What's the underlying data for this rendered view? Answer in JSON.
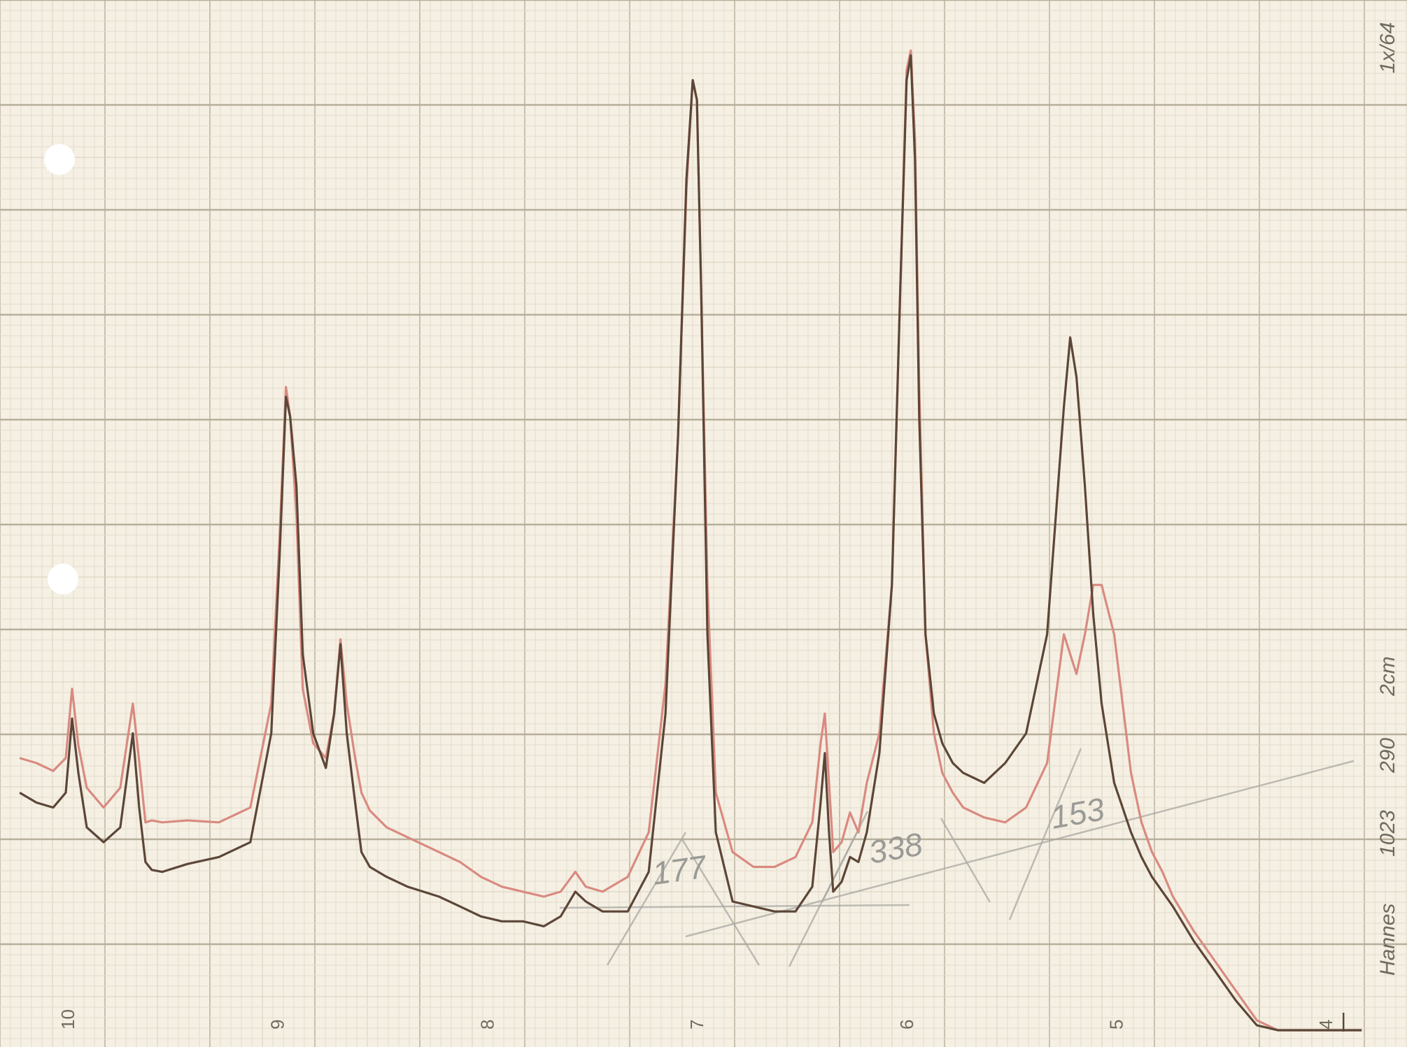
{
  "chart_data": {
    "type": "line",
    "title": "",
    "xlabel": "",
    "ylabel": "",
    "x_reversed": true,
    "xlim": [
      3.9,
      10.3
    ],
    "ylim": [
      0,
      1
    ],
    "x_ticks": [
      {
        "value": 10,
        "label": "10"
      },
      {
        "value": 9,
        "label": "9"
      },
      {
        "value": 8,
        "label": "8"
      },
      {
        "value": 7,
        "label": "7"
      },
      {
        "value": 6,
        "label": "6"
      },
      {
        "value": 5,
        "label": "5"
      },
      {
        "value": 4,
        "label": "4"
      }
    ],
    "grid": true,
    "legend": "none",
    "series": [
      {
        "color": "#d98a80",
        "x": [
          10.3,
          10.22,
          10.14,
          10.08,
          10.05,
          10.02,
          9.98,
          9.9,
          9.82,
          9.76,
          9.73,
          9.7,
          9.67,
          9.62,
          9.5,
          9.35,
          9.2,
          9.1,
          9.06,
          9.03,
          9.01,
          8.98,
          8.95,
          8.9,
          8.84,
          8.8,
          8.77,
          8.74,
          8.7,
          8.67,
          8.63,
          8.55,
          8.45,
          8.3,
          8.2,
          8.1,
          8.0,
          7.9,
          7.8,
          7.72,
          7.65,
          7.6,
          7.52,
          7.4,
          7.3,
          7.22,
          7.16,
          7.12,
          7.09,
          7.07,
          7.05,
          7.02,
          6.98,
          6.9,
          6.8,
          6.7,
          6.6,
          6.52,
          6.48,
          6.46,
          6.44,
          6.42,
          6.38,
          6.34,
          6.3,
          6.26,
          6.2,
          6.14,
          6.1,
          6.07,
          6.05,
          6.03,
          6.01,
          5.98,
          5.94,
          5.9,
          5.85,
          5.8,
          5.7,
          5.6,
          5.5,
          5.4,
          5.32,
          5.29,
          5.26,
          5.22,
          5.18,
          5.14,
          5.08,
          5.04,
          5.0,
          4.95,
          4.9,
          4.85,
          4.8,
          4.7,
          4.6,
          4.5,
          4.4,
          4.3,
          4.25,
          4.2,
          4.15,
          4.08,
          3.98,
          3.9
        ],
        "y": [
          0.275,
          0.27,
          0.262,
          0.275,
          0.345,
          0.288,
          0.245,
          0.225,
          0.245,
          0.33,
          0.272,
          0.21,
          0.212,
          0.21,
          0.212,
          0.21,
          0.225,
          0.33,
          0.5,
          0.65,
          0.62,
          0.52,
          0.345,
          0.29,
          0.275,
          0.32,
          0.395,
          0.33,
          0.275,
          0.24,
          0.222,
          0.205,
          0.195,
          0.18,
          0.17,
          0.155,
          0.145,
          0.14,
          0.135,
          0.14,
          0.16,
          0.145,
          0.14,
          0.155,
          0.2,
          0.35,
          0.6,
          0.85,
          0.96,
          0.94,
          0.75,
          0.45,
          0.24,
          0.18,
          0.165,
          0.165,
          0.175,
          0.21,
          0.29,
          0.32,
          0.25,
          0.18,
          0.19,
          0.22,
          0.2,
          0.25,
          0.3,
          0.45,
          0.75,
          0.97,
          0.99,
          0.9,
          0.65,
          0.4,
          0.3,
          0.26,
          0.24,
          0.225,
          0.215,
          0.21,
          0.225,
          0.27,
          0.4,
          0.38,
          0.36,
          0.4,
          0.45,
          0.45,
          0.4,
          0.33,
          0.26,
          0.21,
          0.18,
          0.16,
          0.135,
          0.1,
          0.07,
          0.04,
          0.01,
          0.0,
          0.0,
          0.0,
          0.0,
          0.0,
          0.0,
          0.0
        ]
      },
      {
        "color": "#5c4638",
        "x": [
          10.3,
          10.22,
          10.14,
          10.08,
          10.05,
          10.02,
          9.98,
          9.9,
          9.82,
          9.76,
          9.73,
          9.7,
          9.67,
          9.62,
          9.5,
          9.35,
          9.2,
          9.1,
          9.06,
          9.03,
          9.01,
          8.98,
          8.95,
          8.9,
          8.84,
          8.8,
          8.77,
          8.74,
          8.7,
          8.67,
          8.63,
          8.55,
          8.45,
          8.3,
          8.2,
          8.1,
          8.0,
          7.9,
          7.8,
          7.72,
          7.65,
          7.6,
          7.52,
          7.4,
          7.3,
          7.22,
          7.16,
          7.12,
          7.09,
          7.07,
          7.05,
          7.02,
          6.98,
          6.9,
          6.8,
          6.7,
          6.6,
          6.52,
          6.48,
          6.46,
          6.44,
          6.42,
          6.38,
          6.34,
          6.3,
          6.26,
          6.2,
          6.14,
          6.1,
          6.07,
          6.05,
          6.03,
          6.01,
          5.98,
          5.94,
          5.9,
          5.85,
          5.8,
          5.7,
          5.6,
          5.5,
          5.4,
          5.32,
          5.29,
          5.26,
          5.22,
          5.18,
          5.14,
          5.08,
          5.04,
          5.0,
          4.95,
          4.9,
          4.85,
          4.8,
          4.7,
          4.6,
          4.5,
          4.4,
          4.3,
          4.25,
          4.2,
          4.15,
          4.08,
          3.98,
          3.9
        ],
        "y": [
          0.24,
          0.23,
          0.225,
          0.24,
          0.315,
          0.26,
          0.205,
          0.19,
          0.205,
          0.3,
          0.225,
          0.17,
          0.162,
          0.16,
          0.168,
          0.175,
          0.19,
          0.3,
          0.48,
          0.64,
          0.62,
          0.55,
          0.38,
          0.3,
          0.265,
          0.32,
          0.39,
          0.3,
          0.23,
          0.18,
          0.165,
          0.155,
          0.145,
          0.135,
          0.125,
          0.115,
          0.11,
          0.11,
          0.105,
          0.115,
          0.14,
          0.13,
          0.12,
          0.12,
          0.16,
          0.32,
          0.6,
          0.86,
          0.96,
          0.94,
          0.75,
          0.4,
          0.2,
          0.13,
          0.125,
          0.12,
          0.12,
          0.145,
          0.23,
          0.28,
          0.2,
          0.14,
          0.15,
          0.175,
          0.17,
          0.2,
          0.28,
          0.45,
          0.75,
          0.96,
          0.985,
          0.88,
          0.62,
          0.4,
          0.32,
          0.29,
          0.27,
          0.26,
          0.25,
          0.27,
          0.3,
          0.4,
          0.63,
          0.7,
          0.66,
          0.55,
          0.42,
          0.33,
          0.25,
          0.225,
          0.2,
          0.175,
          0.155,
          0.14,
          0.125,
          0.09,
          0.06,
          0.03,
          0.005,
          0.0,
          0.0,
          0.0,
          0.0,
          0.0,
          0.0,
          0.0
        ]
      }
    ],
    "annotations": [
      {
        "text": "177",
        "style": "pencil"
      },
      {
        "text": "338",
        "style": "pencil"
      },
      {
        "text": "153",
        "style": "pencil"
      },
      {
        "text": "290",
        "style": "side"
      },
      {
        "text": "1023",
        "style": "side"
      },
      {
        "text": "2cm",
        "style": "side"
      },
      {
        "text": "Hannes",
        "style": "side"
      },
      {
        "text": "1x/64",
        "style": "side"
      }
    ]
  }
}
